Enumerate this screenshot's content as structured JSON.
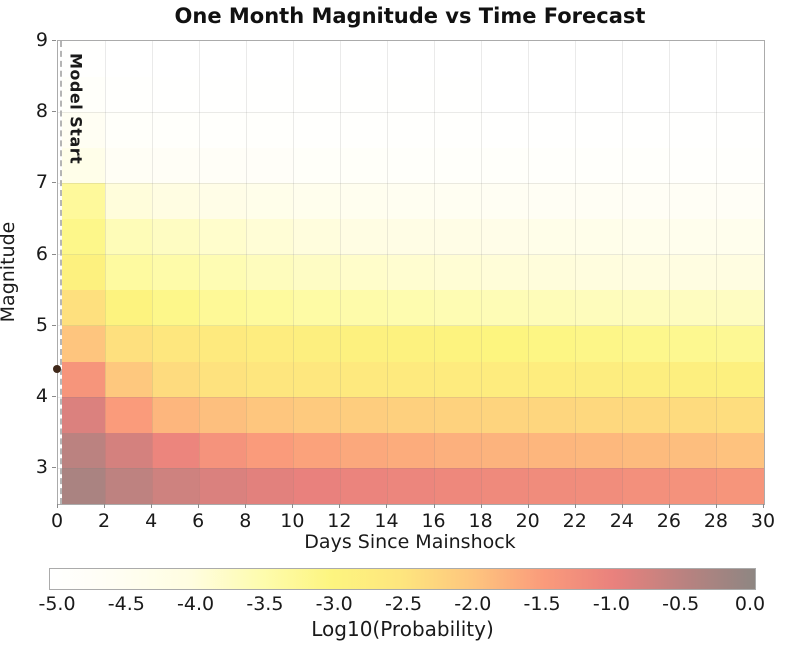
{
  "title": "One Month Magnitude vs Time Forecast",
  "x_axis": {
    "label": "Days Since Mainshock",
    "ticks": [
      0,
      2,
      4,
      6,
      8,
      10,
      12,
      14,
      16,
      18,
      20,
      22,
      24,
      26,
      28,
      30
    ],
    "range": [
      0,
      30
    ]
  },
  "y_axis": {
    "label": "Magnitude",
    "ticks": [
      3,
      4,
      5,
      6,
      7,
      8,
      9
    ],
    "range": [
      2.5,
      9
    ]
  },
  "annotations": {
    "model_start_label": "Model Start",
    "model_start_day": 0.19,
    "mainshock": {
      "day": 0,
      "magnitude": 4.4,
      "marker_color": "#40291a"
    }
  },
  "colorbar": {
    "label": "Log10(Probability)",
    "tick_labels": [
      "-5.0",
      "-4.5",
      "-4.0",
      "-3.5",
      "-3.0",
      "-2.5",
      "-2.0",
      "-1.5",
      "-1.0",
      "-0.5",
      "0.0"
    ],
    "range": [
      -5.0,
      0.0
    ],
    "colormap_stops": [
      {
        "value": -5.0,
        "color": "#ffffff"
      },
      {
        "value": -4.5,
        "color": "#fffef2"
      },
      {
        "value": -4.0,
        "color": "#fffde0"
      },
      {
        "value": -3.5,
        "color": "#fefcae"
      },
      {
        "value": -3.0,
        "color": "#fdf57f"
      },
      {
        "value": -2.5,
        "color": "#fee57e"
      },
      {
        "value": -2.0,
        "color": "#fec57e"
      },
      {
        "value": -1.5,
        "color": "#fa9b7b"
      },
      {
        "value": -1.0,
        "color": "#e9817d"
      },
      {
        "value": -0.5,
        "color": "#b98280"
      },
      {
        "value": 0.0,
        "color": "#8e8682"
      }
    ]
  },
  "chart_data": {
    "type": "heatmap",
    "title": "One Month Magnitude vs Time Forecast",
    "xlabel": "Days Since Mainshock",
    "ylabel": "Magnitude",
    "value_units": "log10_probability",
    "x_bin_edges_days": [
      0.19,
      2,
      4,
      6,
      8,
      10,
      12,
      14,
      16,
      18,
      20,
      22,
      24,
      26,
      28,
      30
    ],
    "y_bin_edges_magnitude": [
      2.5,
      3.0,
      3.5,
      4.0,
      4.5,
      5.0,
      5.5,
      6.0,
      6.5,
      7.0,
      7.5,
      8.0,
      8.5,
      9.0
    ],
    "grid": "on",
    "rows_top_to_bottom": [
      {
        "m_low": 8.5,
        "m_high": 9.0,
        "values": [
          -4.95,
          -5.0,
          -5.0,
          -5.0,
          -5.0,
          -5.0,
          -5.0,
          -5.0,
          -5.0,
          -5.0,
          -5.0,
          -5.0,
          -5.0,
          -5.0,
          -5.0
        ]
      },
      {
        "m_low": 8.0,
        "m_high": 8.5,
        "values": [
          -4.8,
          -4.92,
          -4.95,
          -4.96,
          -4.97,
          -4.97,
          -4.98,
          -4.98,
          -4.98,
          -4.99,
          -4.99,
          -4.99,
          -5.0,
          -5.0,
          -5.0
        ]
      },
      {
        "m_low": 7.5,
        "m_high": 8.0,
        "values": [
          -4.55,
          -4.8,
          -4.84,
          -4.87,
          -4.89,
          -4.91,
          -4.92,
          -4.93,
          -4.94,
          -4.95,
          -4.95,
          -4.96,
          -4.96,
          -4.97,
          -4.97
        ]
      },
      {
        "m_low": 7.0,
        "m_high": 7.5,
        "values": [
          -4.25,
          -4.6,
          -4.65,
          -4.7,
          -4.73,
          -4.75,
          -4.77,
          -4.79,
          -4.81,
          -4.82,
          -4.84,
          -4.85,
          -4.86,
          -4.87,
          -4.88
        ]
      },
      {
        "m_low": 6.5,
        "m_high": 7.0,
        "values": [
          -3.3,
          -3.95,
          -4.05,
          -4.2,
          -4.28,
          -4.35,
          -4.42,
          -4.47,
          -4.5,
          -4.53,
          -4.56,
          -4.58,
          -4.6,
          -4.62,
          -4.64
        ]
      },
      {
        "m_low": 6.0,
        "m_high": 6.5,
        "values": [
          -3.12,
          -3.6,
          -3.7,
          -3.8,
          -3.9,
          -3.97,
          -4.08,
          -4.13,
          -4.18,
          -4.22,
          -4.26,
          -4.29,
          -4.32,
          -4.35,
          -4.37
        ]
      },
      {
        "m_low": 5.5,
        "m_high": 6.0,
        "values": [
          -2.87,
          -3.35,
          -3.45,
          -3.55,
          -3.65,
          -3.72,
          -3.78,
          -3.84,
          -3.88,
          -3.92,
          -3.95,
          -3.98,
          -4.0,
          -4.02,
          -4.04
        ]
      },
      {
        "m_low": 5.0,
        "m_high": 5.5,
        "values": [
          -2.42,
          -2.95,
          -3.12,
          -3.25,
          -3.33,
          -3.4,
          -3.46,
          -3.51,
          -3.55,
          -3.58,
          -3.61,
          -3.64,
          -3.66,
          -3.68,
          -3.7
        ]
      },
      {
        "m_low": 4.5,
        "m_high": 5.0,
        "values": [
          -2.0,
          -2.42,
          -2.57,
          -2.67,
          -2.75,
          -2.82,
          -2.87,
          -2.91,
          -2.95,
          -2.99,
          -3.05,
          -3.1,
          -3.14,
          -3.18,
          -3.22
        ]
      },
      {
        "m_low": 4.0,
        "m_high": 4.5,
        "values": [
          -1.38,
          -2.05,
          -2.35,
          -2.45,
          -2.52,
          -2.57,
          -2.61,
          -2.65,
          -2.68,
          -2.71,
          -2.74,
          -2.76,
          -2.79,
          -2.81,
          -2.83
        ]
      },
      {
        "m_low": 3.5,
        "m_high": 4.0,
        "values": [
          -0.85,
          -1.5,
          -1.82,
          -1.93,
          -2.01,
          -2.08,
          -2.13,
          -2.17,
          -2.21,
          -2.24,
          -2.27,
          -2.3,
          -2.32,
          -2.35,
          -2.37
        ]
      },
      {
        "m_low": 3.0,
        "m_high": 3.5,
        "values": [
          -0.52,
          -0.78,
          -1.08,
          -1.35,
          -1.5,
          -1.58,
          -1.65,
          -1.7,
          -1.75,
          -1.79,
          -1.82,
          -1.85,
          -1.88,
          -1.92,
          -1.96
        ]
      },
      {
        "m_low": 2.5,
        "m_high": 3.0,
        "values": [
          -0.32,
          -0.55,
          -0.72,
          -0.84,
          -0.93,
          -1.0,
          -1.05,
          -1.1,
          -1.14,
          -1.18,
          -1.21,
          -1.24,
          -1.28,
          -1.33,
          -1.38
        ]
      }
    ]
  }
}
